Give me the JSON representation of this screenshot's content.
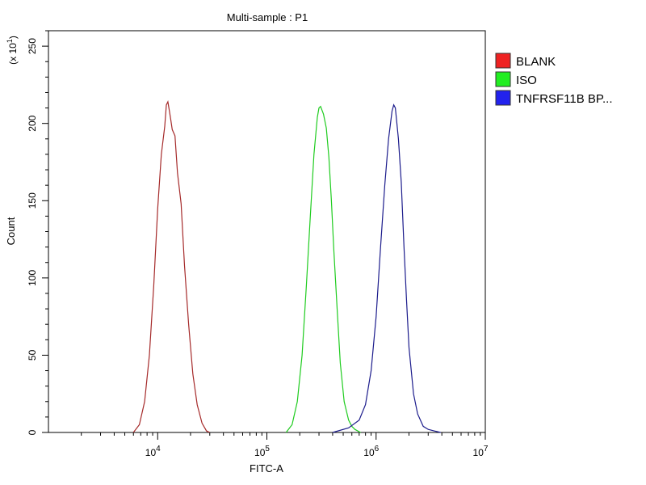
{
  "chart_data": {
    "type": "histogram",
    "title": "Multi-sample : P1",
    "xlabel": "FITC-A",
    "ylabel": "Count",
    "y_multiplier": {
      "base": "(x 10",
      "exp": "1",
      "close": ")"
    },
    "x_scale": "log",
    "xlim": [
      1000,
      10000000
    ],
    "ylim": [
      0,
      260
    ],
    "x_ticks": [
      {
        "value": 10000,
        "base": "10",
        "exp": "4"
      },
      {
        "value": 100000,
        "base": "10",
        "exp": "5"
      },
      {
        "value": 1000000,
        "base": "10",
        "exp": "6"
      },
      {
        "value": 10000000,
        "base": "10",
        "exp": "7"
      }
    ],
    "y_ticks": [
      0,
      50,
      100,
      150,
      200,
      250
    ],
    "grid": false,
    "legend_position": "top-right",
    "series": [
      {
        "name": "BLANK",
        "color": "#a52a2a",
        "swatch": "#ee2222",
        "x": [
          6000,
          6800,
          7600,
          8400,
          9200,
          10000,
          10800,
          11600,
          12000,
          12400,
          12800,
          13200,
          13600,
          14400,
          15200,
          16400,
          17600,
          19200,
          21000,
          23000,
          25500,
          28000,
          30000
        ],
        "y": [
          0,
          5,
          20,
          50,
          95,
          145,
          180,
          198,
          212,
          214,
          208,
          202,
          196,
          192,
          168,
          148,
          108,
          70,
          38,
          18,
          6,
          1,
          0
        ]
      },
      {
        "name": "ISO",
        "color": "#1fcc1f",
        "swatch": "#22ee22",
        "x": [
          150000,
          170000,
          190000,
          210000,
          230000,
          250000,
          270000,
          290000,
          300000,
          310000,
          330000,
          350000,
          370000,
          390000,
          410000,
          440000,
          470000,
          510000,
          560000,
          600000,
          640000,
          680000,
          720000
        ],
        "y": [
          0,
          5,
          20,
          50,
          95,
          140,
          180,
          204,
          210,
          211,
          206,
          197,
          178,
          150,
          118,
          80,
          45,
          20,
          8,
          4,
          2,
          1,
          0
        ]
      },
      {
        "name": "TNFRSF11B BP...",
        "color": "#1c1c8c",
        "swatch": "#2222ee",
        "x": [
          400000,
          560000,
          700000,
          800000,
          900000,
          1000000,
          1100000,
          1200000,
          1300000,
          1400000,
          1450000,
          1500000,
          1600000,
          1700000,
          1800000,
          1900000,
          2000000,
          2200000,
          2400000,
          2700000,
          3000000,
          3400000,
          3900000
        ],
        "y": [
          0,
          3,
          8,
          18,
          40,
          75,
          120,
          160,
          190,
          208,
          212,
          210,
          190,
          162,
          120,
          85,
          55,
          25,
          12,
          4,
          2,
          1,
          0
        ]
      }
    ]
  }
}
